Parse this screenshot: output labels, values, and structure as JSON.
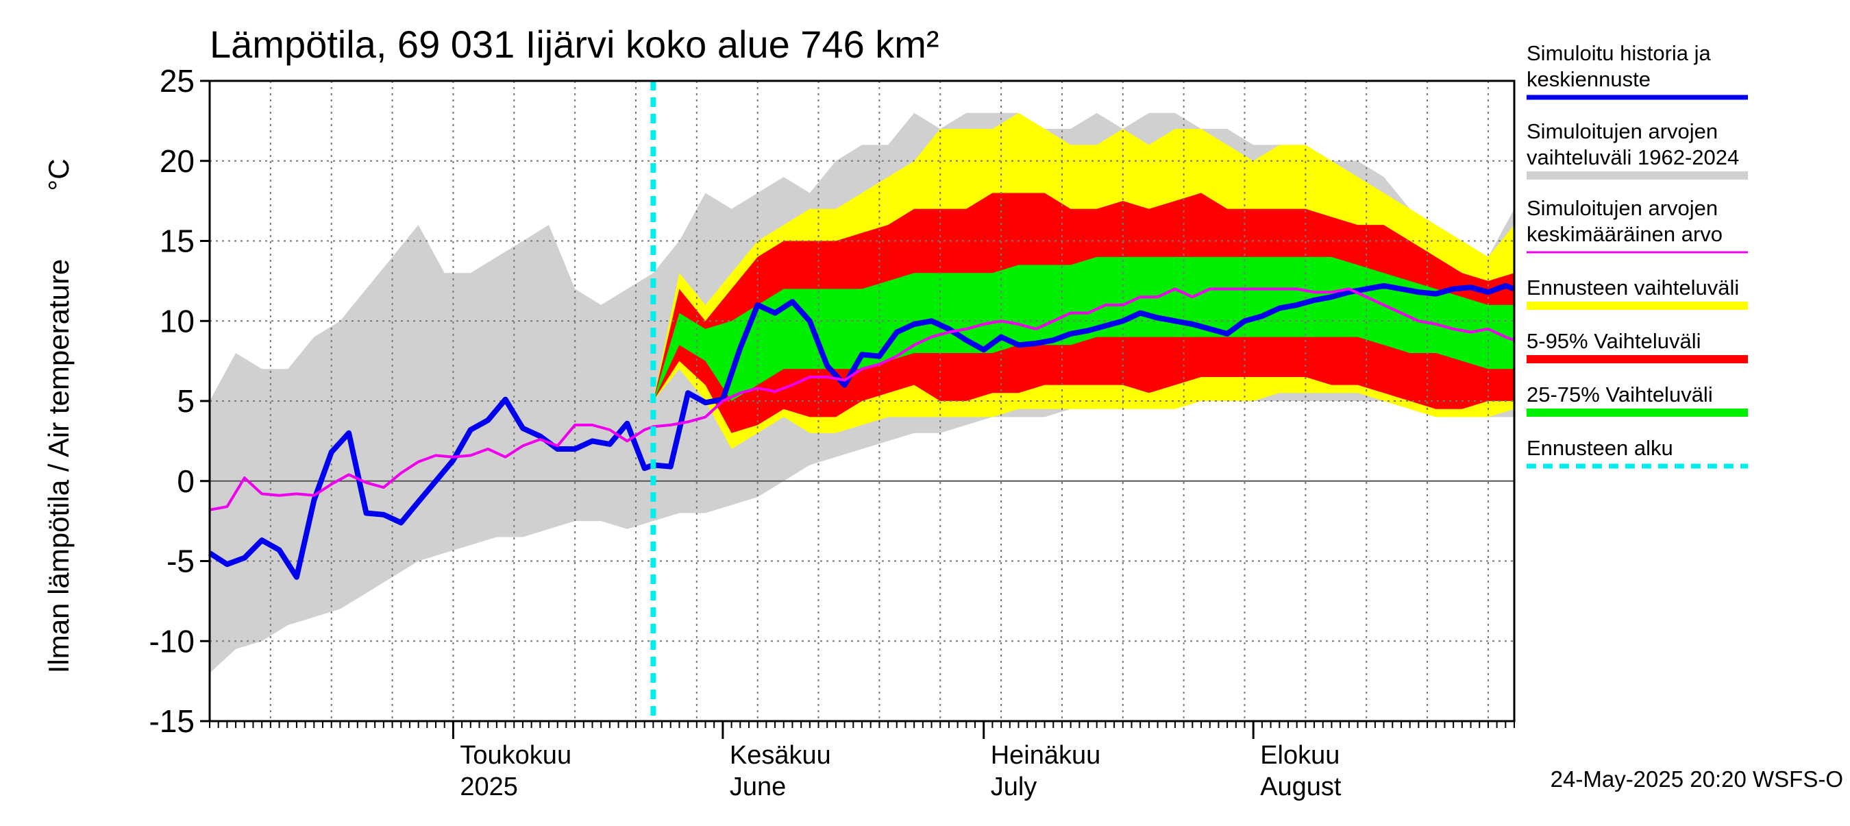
{
  "chart_data": {
    "type": "area",
    "title": "Lämpötila, 69 031 Iijärvi koko alue 746 km²",
    "ylabel": "Ilman lämpötila / Air temperature",
    "yunit": "°C",
    "ylim": [
      -15,
      25
    ],
    "yticks": [
      -15,
      -10,
      -5,
      0,
      5,
      10,
      15,
      20,
      25
    ],
    "xlim": [
      "2025-04-03",
      "2025-08-31"
    ],
    "grid": true,
    "legend_position": "right",
    "month_labels": [
      {
        "date": "2025-05-01",
        "fi": "Toukokuu",
        "en": "2025"
      },
      {
        "date": "2025-06-01",
        "fi": "Kesäkuu",
        "en": "June"
      },
      {
        "date": "2025-07-01",
        "fi": "Heinäkuu",
        "en": "July"
      },
      {
        "date": "2025-08-01",
        "fi": "Elokuu",
        "en": "August"
      }
    ],
    "forecast_start": "2025-05-24",
    "timestamp": "24-May-2025 20:20 WSFS-O",
    "legend": [
      {
        "label": "Simuloitu historia ja keskiennuste",
        "color": "#0000ee"
      },
      {
        "label": "Simuloitujen arvojen vaihteluväli 1962-2024",
        "color": "#d0d0d0"
      },
      {
        "label": "Simuloitujen arvojen keskimääräinen arvo",
        "color": "#ee00ee"
      },
      {
        "label": "Ennusteen vaihteluväli",
        "color": "#ffff00"
      },
      {
        "label": "5-95% Vaihteluväli",
        "color": "#ff0000"
      },
      {
        "label": "25-75% Vaihteluväli",
        "color": "#00ee00"
      },
      {
        "label": "Ennusteen alku",
        "color": "#00eeee"
      }
    ],
    "history_range": {
      "x": [
        "2025-04-03",
        "2025-04-06",
        "2025-04-09",
        "2025-04-12",
        "2025-04-15",
        "2025-04-18",
        "2025-04-21",
        "2025-04-24",
        "2025-04-27",
        "2025-04-30",
        "2025-05-03",
        "2025-05-06",
        "2025-05-09",
        "2025-05-12",
        "2025-05-15",
        "2025-05-18",
        "2025-05-21",
        "2025-05-24",
        "2025-05-27",
        "2025-05-30",
        "2025-06-02",
        "2025-06-05",
        "2025-06-08",
        "2025-06-11",
        "2025-06-14",
        "2025-06-17",
        "2025-06-20",
        "2025-06-23",
        "2025-06-26",
        "2025-06-29",
        "2025-07-02",
        "2025-07-05",
        "2025-07-08",
        "2025-07-11",
        "2025-07-14",
        "2025-07-17",
        "2025-07-20",
        "2025-07-23",
        "2025-07-26",
        "2025-07-29",
        "2025-08-01",
        "2025-08-04",
        "2025-08-07",
        "2025-08-10",
        "2025-08-13",
        "2025-08-16",
        "2025-08-19",
        "2025-08-22",
        "2025-08-25",
        "2025-08-28",
        "2025-08-31"
      ],
      "low": [
        -12,
        -10.5,
        -10,
        -9,
        -8.5,
        -8,
        -7,
        -6,
        -5,
        -4.5,
        -4,
        -3.5,
        -3.5,
        -3,
        -2.5,
        -2.5,
        -3,
        -2.5,
        -2,
        -2,
        -1.5,
        -1,
        0,
        1,
        1.5,
        2,
        2.5,
        3,
        3,
        3.5,
        4,
        4,
        4,
        4.5,
        4.5,
        5,
        5,
        5,
        5,
        5,
        5,
        5,
        5,
        5,
        5,
        5,
        4.5,
        4,
        4,
        4,
        4
      ],
      "high": [
        5,
        8,
        7,
        7,
        9,
        10,
        12,
        14,
        16,
        13,
        13,
        14,
        15,
        16,
        12,
        11,
        12,
        13,
        15,
        18,
        17,
        18,
        19,
        18,
        20,
        21,
        21,
        23,
        22,
        23,
        23,
        23,
        22,
        22,
        23,
        22,
        23,
        23,
        22,
        22,
        21,
        21,
        21,
        20,
        20,
        19,
        17,
        16,
        15,
        14,
        17
      ]
    },
    "forecast_x": [
      "2025-05-24",
      "2025-05-27",
      "2025-05-30",
      "2025-06-02",
      "2025-06-05",
      "2025-06-08",
      "2025-06-11",
      "2025-06-14",
      "2025-06-17",
      "2025-06-20",
      "2025-06-23",
      "2025-06-26",
      "2025-06-29",
      "2025-07-02",
      "2025-07-05",
      "2025-07-08",
      "2025-07-11",
      "2025-07-14",
      "2025-07-17",
      "2025-07-20",
      "2025-07-23",
      "2025-07-26",
      "2025-07-29",
      "2025-08-01",
      "2025-08-04",
      "2025-08-07",
      "2025-08-10",
      "2025-08-13",
      "2025-08-16",
      "2025-08-19",
      "2025-08-22",
      "2025-08-25",
      "2025-08-28",
      "2025-08-31"
    ],
    "forecast_range": {
      "low": [
        5,
        7,
        5,
        2,
        3,
        4,
        3,
        3,
        3.5,
        4,
        4,
        4,
        4,
        4,
        4.5,
        4.5,
        4.5,
        4.5,
        4.5,
        4.5,
        4.5,
        5,
        5,
        5,
        5.5,
        5.5,
        5.5,
        5.5,
        5,
        4.5,
        4,
        4,
        4,
        4.5
      ],
      "high": [
        5,
        13,
        11,
        13,
        15,
        16,
        17,
        17,
        18,
        19,
        20,
        22,
        22,
        22,
        23,
        22,
        21,
        21,
        22,
        21,
        22,
        22,
        21,
        20,
        21,
        21,
        20,
        19,
        18,
        17,
        16,
        15,
        14,
        16
      ]
    },
    "p05_95": {
      "low": [
        5,
        7.5,
        6,
        3,
        3.5,
        4.5,
        4,
        4,
        5,
        5.5,
        6,
        5,
        5,
        5.5,
        5.5,
        6,
        6,
        6,
        6,
        5.5,
        6,
        6.5,
        6.5,
        6.5,
        6.5,
        6.5,
        6,
        6,
        5.5,
        5,
        4.5,
        4.5,
        5,
        5
      ],
      "high": [
        5,
        12,
        10,
        12,
        14,
        15,
        15,
        15,
        15.5,
        16,
        17,
        17,
        17,
        18,
        18,
        18,
        17,
        17,
        17.5,
        17,
        17.5,
        18,
        17,
        17,
        17,
        17,
        16.5,
        16,
        16,
        15,
        14,
        13,
        12.5,
        13
      ]
    },
    "p25_75": {
      "low": [
        5,
        8.5,
        7.5,
        5,
        6,
        7,
        7,
        7,
        7,
        7.5,
        8,
        8,
        8,
        8,
        8.5,
        8.5,
        8.5,
        9,
        9,
        9,
        9,
        9,
        9,
        9,
        9,
        9,
        9,
        9,
        8.5,
        8,
        8,
        7.5,
        7,
        7
      ]
    },
    "p25_75_high": [
      5,
      10.5,
      9.5,
      10,
      11,
      12,
      12,
      12,
      12,
      12.5,
      13,
      13,
      13,
      13,
      13.5,
      13.5,
      13.5,
      14,
      14,
      14,
      14,
      14,
      14,
      14,
      14,
      14,
      14,
      13.5,
      13,
      12.5,
      12,
      11.5,
      11,
      11
    ],
    "median": {
      "x": [
        "2025-04-03",
        "2025-04-05",
        "2025-04-07",
        "2025-04-09",
        "2025-04-11",
        "2025-04-13",
        "2025-04-15",
        "2025-04-17",
        "2025-04-19",
        "2025-04-21",
        "2025-04-23",
        "2025-04-25",
        "2025-04-27",
        "2025-04-29",
        "2025-05-01",
        "2025-05-03",
        "2025-05-05",
        "2025-05-07",
        "2025-05-09",
        "2025-05-11",
        "2025-05-13",
        "2025-05-15",
        "2025-05-17",
        "2025-05-19",
        "2025-05-21",
        "2025-05-23",
        "2025-05-24",
        "2025-05-26",
        "2025-05-28",
        "2025-05-30",
        "2025-06-01",
        "2025-06-03",
        "2025-06-05",
        "2025-06-07",
        "2025-06-09",
        "2025-06-11",
        "2025-06-13",
        "2025-06-15",
        "2025-06-17",
        "2025-06-19",
        "2025-06-21",
        "2025-06-23",
        "2025-06-25",
        "2025-06-27",
        "2025-06-29",
        "2025-07-01",
        "2025-07-03",
        "2025-07-05",
        "2025-07-07",
        "2025-07-09",
        "2025-07-11",
        "2025-07-13",
        "2025-07-15",
        "2025-07-17",
        "2025-07-19",
        "2025-07-21",
        "2025-07-23",
        "2025-07-25",
        "2025-07-27",
        "2025-07-29",
        "2025-07-31",
        "2025-08-02",
        "2025-08-04",
        "2025-08-06",
        "2025-08-08",
        "2025-08-10",
        "2025-08-12",
        "2025-08-14",
        "2025-08-16",
        "2025-08-18",
        "2025-08-20",
        "2025-08-22",
        "2025-08-24",
        "2025-08-26",
        "2025-08-28",
        "2025-08-30",
        "2025-08-31"
      ],
      "y": [
        -1.8,
        -1.6,
        0.2,
        -0.8,
        -0.9,
        -0.8,
        -0.9,
        -0.2,
        0.4,
        -0.1,
        -0.4,
        0.5,
        1.2,
        1.6,
        1.5,
        1.6,
        2,
        1.5,
        2.2,
        2.6,
        2.2,
        3.5,
        3.5,
        3.2,
        2.5,
        3.2,
        3.4,
        3.5,
        3.7,
        4,
        5,
        5.5,
        5.8,
        5.6,
        6,
        6.5,
        6.5,
        6.3,
        7,
        7.3,
        7.8,
        8.5,
        9,
        9.3,
        9.5,
        9.8,
        10,
        9.8,
        9.5,
        10,
        10.5,
        10.5,
        11,
        11,
        11.5,
        11.5,
        12,
        11.5,
        12,
        12,
        12,
        12,
        12,
        12,
        11.8,
        11.8,
        12,
        11.5,
        11,
        10.5,
        10,
        9.8,
        9.5,
        9.3,
        9.5,
        9,
        8.8
      ]
    },
    "mean_history": {
      "x": [
        "2025-04-03",
        "2025-04-05",
        "2025-04-07",
        "2025-04-09",
        "2025-04-11",
        "2025-04-13",
        "2025-04-15",
        "2025-04-17",
        "2025-04-19",
        "2025-04-21",
        "2025-04-23",
        "2025-04-25",
        "2025-04-27",
        "2025-04-29",
        "2025-05-01",
        "2025-05-03",
        "2025-05-05",
        "2025-05-07",
        "2025-05-09",
        "2025-05-11",
        "2025-05-13",
        "2025-05-15",
        "2025-05-17",
        "2025-05-19",
        "2025-05-21",
        "2025-05-23",
        "2025-05-24",
        "2025-05-26",
        "2025-05-28",
        "2025-05-30",
        "2025-06-01",
        "2025-06-03",
        "2025-06-05",
        "2025-06-07",
        "2025-06-09",
        "2025-06-11",
        "2025-06-13",
        "2025-06-15",
        "2025-06-17",
        "2025-06-19",
        "2025-06-21",
        "2025-06-23",
        "2025-06-25",
        "2025-06-27",
        "2025-06-29",
        "2025-07-01",
        "2025-07-03",
        "2025-07-05",
        "2025-07-07",
        "2025-07-09",
        "2025-07-11",
        "2025-07-13",
        "2025-07-15",
        "2025-07-17",
        "2025-07-19",
        "2025-07-21",
        "2025-07-23",
        "2025-07-25",
        "2025-07-27",
        "2025-07-29",
        "2025-07-31",
        "2025-08-02",
        "2025-08-04",
        "2025-08-06",
        "2025-08-08",
        "2025-08-10",
        "2025-08-12",
        "2025-08-14",
        "2025-08-16",
        "2025-08-18",
        "2025-08-20",
        "2025-08-22",
        "2025-08-24",
        "2025-08-26",
        "2025-08-28",
        "2025-08-30",
        "2025-08-31"
      ],
      "y": [
        -4.5,
        -5.2,
        -4.8,
        -3.7,
        -4.3,
        -6,
        -1.2,
        1.8,
        3,
        -2,
        -2.1,
        -2.6,
        -1.3,
        0,
        1.3,
        3.2,
        3.8,
        5.1,
        3.3,
        2.8,
        2,
        2,
        2.5,
        2.3,
        3.6,
        0.8,
        1,
        0.9,
        5.5,
        4.9,
        5.1,
        8.3,
        11,
        10.5,
        11.2,
        10,
        7.2,
        6,
        7.9,
        7.8,
        9.3,
        9.8,
        10,
        9.5,
        8.8,
        8.2,
        9,
        8.5,
        8.6,
        8.8,
        9.2,
        9.4,
        9.7,
        10,
        10.5,
        10.2,
        10,
        9.8,
        9.5,
        9.2,
        10,
        10.3,
        10.8,
        11,
        11.3,
        11.5,
        11.8,
        12,
        12.2,
        12,
        11.8,
        11.7,
        12,
        12.1,
        11.8,
        12.2,
        12
      ]
    }
  }
}
